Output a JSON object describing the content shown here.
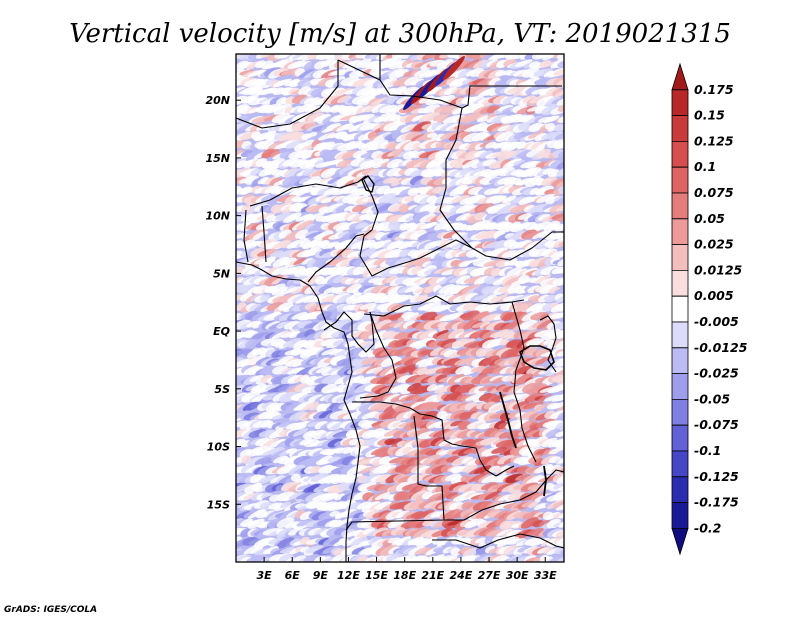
{
  "chart_data": {
    "type": "heatmap",
    "title": "Vertical velocity [m/s] at 300hPa, VT: 2019021315",
    "variable": "Vertical velocity",
    "units": "m/s",
    "level": "300hPa",
    "valid_time": "2019021315",
    "xlim": [
      0,
      35
    ],
    "ylim": [
      -20,
      24
    ],
    "x_ticks": [
      {
        "value": 3,
        "label": "3E"
      },
      {
        "value": 6,
        "label": "6E"
      },
      {
        "value": 9,
        "label": "9E"
      },
      {
        "value": 12,
        "label": "12E"
      },
      {
        "value": 15,
        "label": "15E"
      },
      {
        "value": 18,
        "label": "18E"
      },
      {
        "value": 21,
        "label": "21E"
      },
      {
        "value": 24,
        "label": "24E"
      },
      {
        "value": 27,
        "label": "27E"
      },
      {
        "value": 30,
        "label": "30E"
      },
      {
        "value": 33,
        "label": "33E"
      }
    ],
    "y_ticks": [
      {
        "value": 20,
        "label": "20N"
      },
      {
        "value": 15,
        "label": "15N"
      },
      {
        "value": 10,
        "label": "10N"
      },
      {
        "value": 5,
        "label": "5N"
      },
      {
        "value": 0,
        "label": "EQ"
      },
      {
        "value": -5,
        "label": "5S"
      },
      {
        "value": -10,
        "label": "10S"
      },
      {
        "value": -15,
        "label": "15S"
      }
    ],
    "colorbar": {
      "labels": [
        "0.175",
        "0.15",
        "0.125",
        "0.1",
        "0.075",
        "0.05",
        "0.025",
        "0.0125",
        "0.005",
        "-0.005",
        "-0.0125",
        "-0.025",
        "-0.05",
        "-0.075",
        "-0.1",
        "-0.125",
        "-0.175",
        "-0.2"
      ],
      "colors": [
        "#a31a1a",
        "#b92828",
        "#c93a3a",
        "#d64e4e",
        "#de6464",
        "#e57d7d",
        "#ec9a9a",
        "#f3bebe",
        "#fadede",
        "#ffffff",
        "#dcdcfa",
        "#bcbcf4",
        "#9e9eec",
        "#8080e2",
        "#6262d6",
        "#4646c6",
        "#2c2cb0",
        "#1a1a98",
        "#0e0e80"
      ]
    }
  },
  "credit": "GrADS: IGES/COLA"
}
